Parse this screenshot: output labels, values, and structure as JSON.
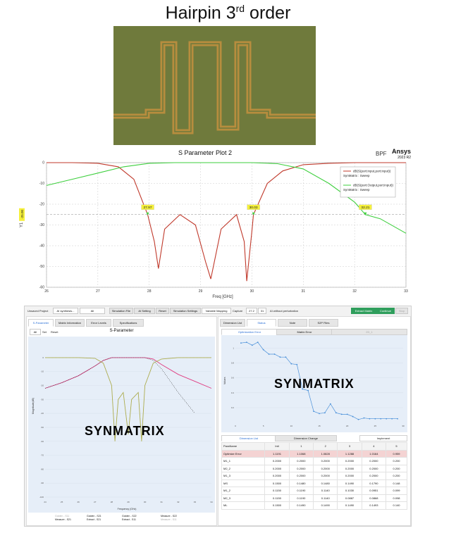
{
  "title": {
    "main": "Hairpin  3",
    "sup": "rd",
    "rest": " order"
  },
  "plot": {
    "title": "S Parameter Plot 2",
    "bpf_label": "BPF",
    "brand": "Ansys",
    "brand_year": "2023 R2",
    "ylabel": "Y1",
    "xlabel": "Freq [GHz]",
    "y_marker": "-25.00",
    "markers": [
      "27.97",
      "30.03",
      "32.21"
    ],
    "legend": [
      {
        "name": "dB(S(port:input,port:input))",
        "sub": "SynMatrix : Sweep",
        "color": "#c0392b"
      },
      {
        "name": "dB(S(port:Output,port:input))",
        "sub": "SynMatrix : Sweep",
        "color": "#3ecf3e"
      }
    ]
  },
  "chart_data": [
    {
      "type": "line",
      "title": "S Parameter Plot 2",
      "xlabel": "Freq [GHz]",
      "ylabel": "Y1",
      "xlim": [
        26,
        33
      ],
      "ylim": [
        -60,
        0
      ],
      "x_ticks": [
        "26",
        "27",
        "28",
        "29",
        "30",
        "31",
        "32",
        "33"
      ],
      "y_ticks": [
        "0",
        "-10",
        "-20",
        "-30",
        "-40",
        "-50",
        "-60"
      ],
      "grid": true,
      "legend_position": "top-right",
      "series": [
        {
          "name": "dB(S(port:input,port:input))",
          "x": [
            26,
            26.5,
            27,
            27.4,
            27.7,
            27.97,
            28.1,
            28.18,
            28.3,
            28.6,
            28.9,
            29.1,
            29.2,
            29.4,
            29.7,
            29.85,
            29.9,
            30.0,
            30.03,
            30.3,
            30.6,
            31,
            31.5,
            32,
            32.5,
            33
          ],
          "y": [
            0,
            0,
            -0.3,
            -2,
            -8,
            -25,
            -38,
            -51,
            -32,
            -25,
            -30,
            -48,
            -56,
            -32,
            -25,
            -38,
            -57,
            -33,
            -25,
            -10,
            -4,
            -1,
            -0.3,
            0,
            0,
            0
          ]
        },
        {
          "name": "dB(S(port:Output,port:input))",
          "x": [
            26,
            26.5,
            27,
            27.5,
            28,
            28.5,
            29,
            29.5,
            30,
            30.5,
            31,
            31.5,
            32,
            32.21,
            32.5,
            33
          ],
          "y": [
            -11,
            -8,
            -5,
            -2,
            -0.3,
            0,
            0,
            0,
            0,
            -0.5,
            -3,
            -10,
            -19,
            -25,
            -27,
            -34
          ]
        }
      ]
    },
    {
      "type": "line",
      "title": "S-Parameter",
      "xlabel": "Frequency (GHz)",
      "ylabel": "Magnitude(dB)",
      "xlim": [
        24,
        34
      ],
      "ylim": [
        -100,
        5
      ],
      "x_ticks": [
        "24",
        "25",
        "26",
        "27",
        "28",
        "29",
        "30",
        "31",
        "32",
        "33",
        "34"
      ],
      "y_ticks": [
        "0",
        "-10",
        "-20",
        "-30",
        "-40",
        "-50",
        "-60",
        "-70",
        "-80",
        "-90",
        "-100"
      ],
      "series": [
        {
          "name": "Golden - S21",
          "x": [
            24,
            25,
            26,
            27,
            27.5,
            28,
            29,
            30,
            30.5,
            31,
            32,
            33,
            34
          ],
          "y": [
            -22,
            -18,
            -13,
            -6,
            -2,
            0,
            0,
            0,
            -1,
            -5,
            -12,
            -17,
            -22
          ]
        },
        {
          "name": "Golden - S22",
          "x": [
            24,
            26,
            27,
            27.5,
            28,
            28.2,
            28.4,
            28.7,
            29,
            29.2,
            29.6,
            29.8,
            30,
            30.5,
            31,
            32,
            34
          ],
          "y": [
            0,
            0,
            -0.5,
            -4,
            -20,
            -60,
            -30,
            -25,
            -55,
            -30,
            -25,
            -60,
            -20,
            -4,
            -1,
            0,
            0
          ]
        },
        {
          "name": "Measure - S21",
          "x": [
            24,
            25,
            26,
            27,
            27.5,
            28,
            29,
            30,
            30.5,
            31,
            32,
            33
          ],
          "y": [
            -22,
            -18,
            -13,
            -6,
            -2,
            0,
            0,
            0,
            -2,
            -8,
            -25,
            -40
          ]
        },
        {
          "name": "Measure - S11",
          "x": [
            24,
            26,
            27,
            27.5,
            28,
            28.2,
            28.4,
            28.7,
            29,
            29.2,
            29.6,
            29.8,
            30,
            30.5,
            31,
            32,
            34
          ],
          "y": [
            0,
            0,
            -0.5,
            -4,
            -20,
            -58,
            -30,
            -25,
            -54,
            -30,
            -25,
            -58,
            -20,
            -4,
            -1,
            0,
            0
          ]
        }
      ]
    },
    {
      "type": "line",
      "title": "Optimization Error",
      "ylabel": "Values",
      "xlim": [
        0,
        30
      ],
      "ylim": [
        0,
        1.1
      ],
      "x_ticks": [
        "0",
        "5",
        "10",
        "15",
        "20",
        "25",
        "30"
      ],
      "y_ticks": [
        "0.2",
        "0.4",
        "0.6",
        "0.8",
        "1"
      ],
      "series": [
        {
          "name": "Optimization Error",
          "x": [
            1,
            2,
            3,
            4,
            5,
            6,
            7,
            8,
            9,
            10,
            11,
            12,
            13,
            14,
            15,
            16,
            17,
            18,
            19,
            20,
            21,
            22,
            23,
            24,
            25,
            26,
            27,
            28,
            29
          ],
          "y": [
            1.07,
            1.08,
            1.04,
            1.08,
            0.98,
            0.92,
            0.92,
            0.88,
            0.88,
            0.79,
            0.78,
            0.45,
            0.43,
            0.15,
            0.12,
            0.13,
            0.25,
            0.13,
            0.11,
            0.11,
            0.08,
            0.04,
            0.06,
            0.05,
            0.05,
            0.05,
            0.05,
            0.05,
            0.05
          ]
        }
      ]
    }
  ],
  "app": {
    "toolbar": {
      "project": "Unsaved Project",
      "dropdown1": "AI synthesis...",
      "dropdown2": "All",
      "buttons": [
        "Simulation File",
        "AI Setting",
        "Reset",
        "Simulation Settings",
        "Variable Mapping"
      ],
      "capture_label": "Capture",
      "capture_val": "27.2",
      "capture_val2": "31",
      "ai_without": "AI without perturbation",
      "extract": "Extract Matrix",
      "continue": "Continue",
      "stop": "Stop"
    },
    "left_tabs": [
      "S-Parameter",
      "Matrix Information",
      "Error Levels",
      "Specifications"
    ],
    "zoom_box": "All",
    "zoom_set": "Set",
    "zoom_reset": "Reset",
    "sparam_title": "S-Parameter",
    "watermark": "SYNMATRIX",
    "y_axis_label": "Magnitude(dB)",
    "x_axis_label": "Frequency (GHz)",
    "legend": [
      "Golden - S11",
      "Golden - S21",
      "Golden - S22",
      "Measure - S11",
      "Measure - S21",
      "Extract - S11",
      "Extract - S21",
      "Measure - S22"
    ],
    "right_tabs": [
      "Dimension List",
      "Status",
      "Note",
      "S2P Files"
    ],
    "subtabs": [
      "Optimization Error",
      "Matrix Error",
      "2D_1"
    ],
    "opt_ylabel": "Values",
    "table_tabs": [
      "Dimension List",
      "Dimension Change",
      "Implement"
    ],
    "table": {
      "header": [
        "ParaName",
        "Init",
        "1",
        "2",
        "3",
        "4",
        "5"
      ],
      "rows": [
        [
          "Optimize Error",
          "1.1191",
          "1.1068",
          "1.0828",
          "1.1288",
          "1.0164",
          "0.959"
        ],
        [
          "M1_1",
          "0.2000",
          "0.2000",
          "0.2000",
          "0.2000",
          "0.2000",
          "0.200"
        ],
        [
          "M2_2",
          "0.2000",
          "0.2000",
          "0.2000",
          "0.2000",
          "0.2000",
          "0.200"
        ],
        [
          "M1_3",
          "0.2000",
          "0.2000",
          "0.2000",
          "0.2000",
          "0.2000",
          "0.200"
        ],
        [
          "MS",
          "0.1500",
          "0.1480",
          "0.1480",
          "0.1490",
          "0.1790",
          "0.148"
        ],
        [
          "M1_2",
          "0.1150",
          "0.1190",
          "0.1140",
          "0.1030",
          "0.0951",
          "0.099"
        ],
        [
          "M2_3",
          "0.1150",
          "0.1190",
          "0.1140",
          "0.0887",
          "0.0868",
          "0.098"
        ],
        [
          "ML",
          "0.1500",
          "0.1490",
          "0.1490",
          "0.1490",
          "0.1493",
          "0.140"
        ]
      ]
    }
  },
  "colors": {
    "pcb_bg": "#6f7a3c",
    "pcb_trace": "#b78d3e",
    "s11": "#c0392b",
    "s21": "#3ecf3e",
    "golden": "#d98aa8",
    "pink": "#e03a80",
    "accent": "#2f9e5c"
  }
}
